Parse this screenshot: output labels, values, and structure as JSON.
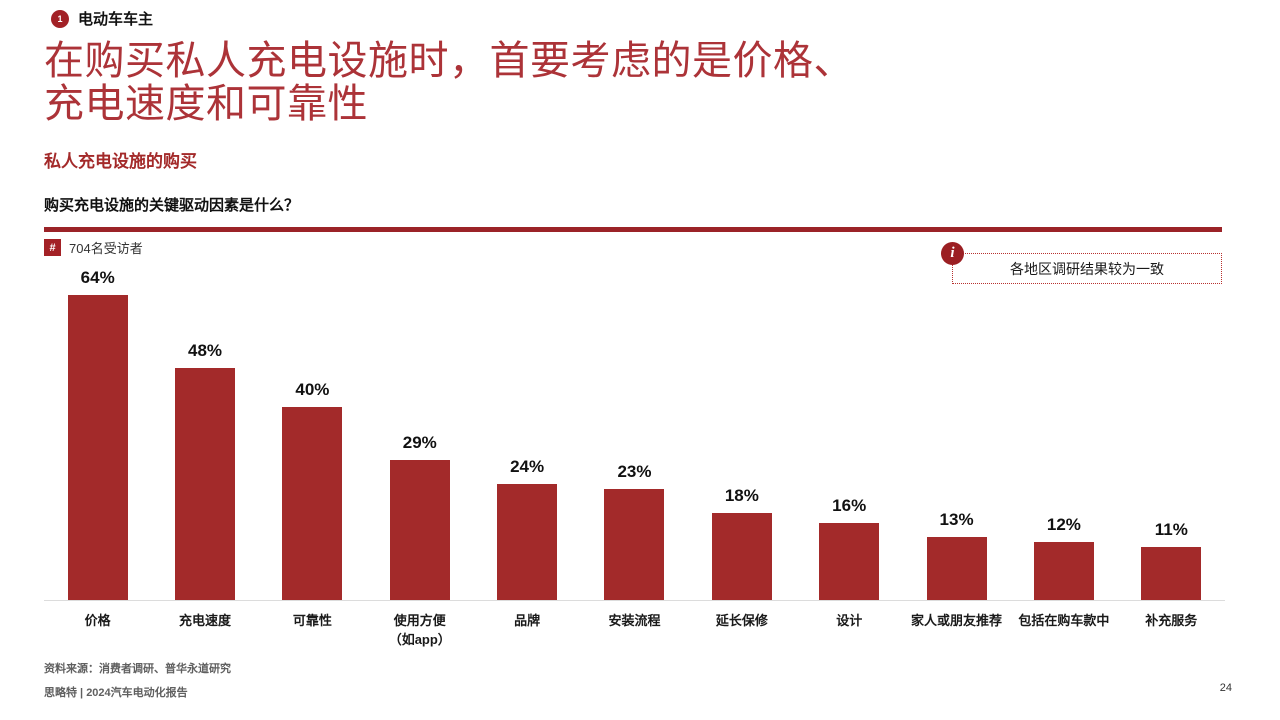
{
  "colors": {
    "bar_red": "#A32A2A",
    "divider_red": "#9B2328",
    "title_red": "#AC3338",
    "badge_red": "#A22126",
    "callout_border_red": "#B8312F",
    "axis_gray": "#DCDCDC",
    "footer_gray": "#606060"
  },
  "header": {
    "section_number": "1",
    "section_label": "电动车车主",
    "title_line1": "在购买私人充电设施时，首要考虑的是价格、",
    "title_line2": "充电速度和可靠性",
    "subtitle": "私人充电设施的购买",
    "question": "购买充电设施的关键驱动因素是什么？"
  },
  "chart_meta": {
    "hash_symbol": "#",
    "respondents": "704名受访者"
  },
  "callout": {
    "info_symbol": "i",
    "text": "各地区调研结果较为一致"
  },
  "chart_data": {
    "type": "bar",
    "title": "购买充电设施的关键驱动因素是什么？",
    "categories": [
      "价格",
      "充电速度",
      "可靠性",
      "使用方便\n（如app）",
      "品牌",
      "安装流程",
      "延长保修",
      "设计",
      "家人或朋友推荐",
      "包括在购车款中",
      "补充服务"
    ],
    "values": [
      64,
      48,
      40,
      29,
      24,
      23,
      18,
      16,
      13,
      12,
      11
    ],
    "value_labels": [
      "64%",
      "48%",
      "40%",
      "29%",
      "24%",
      "23%",
      "18%",
      "16%",
      "13%",
      "12%",
      "11%"
    ],
    "unit": "%",
    "xlabel": "",
    "ylabel": "",
    "ylim": [
      0,
      64
    ],
    "grid": false,
    "legend": false,
    "bar_color": "#A32A2A"
  },
  "footer": {
    "source": "资料来源：消费者调研、普华永道研究",
    "report": "思略特 | 2024汽车电动化报告",
    "page": "24"
  }
}
